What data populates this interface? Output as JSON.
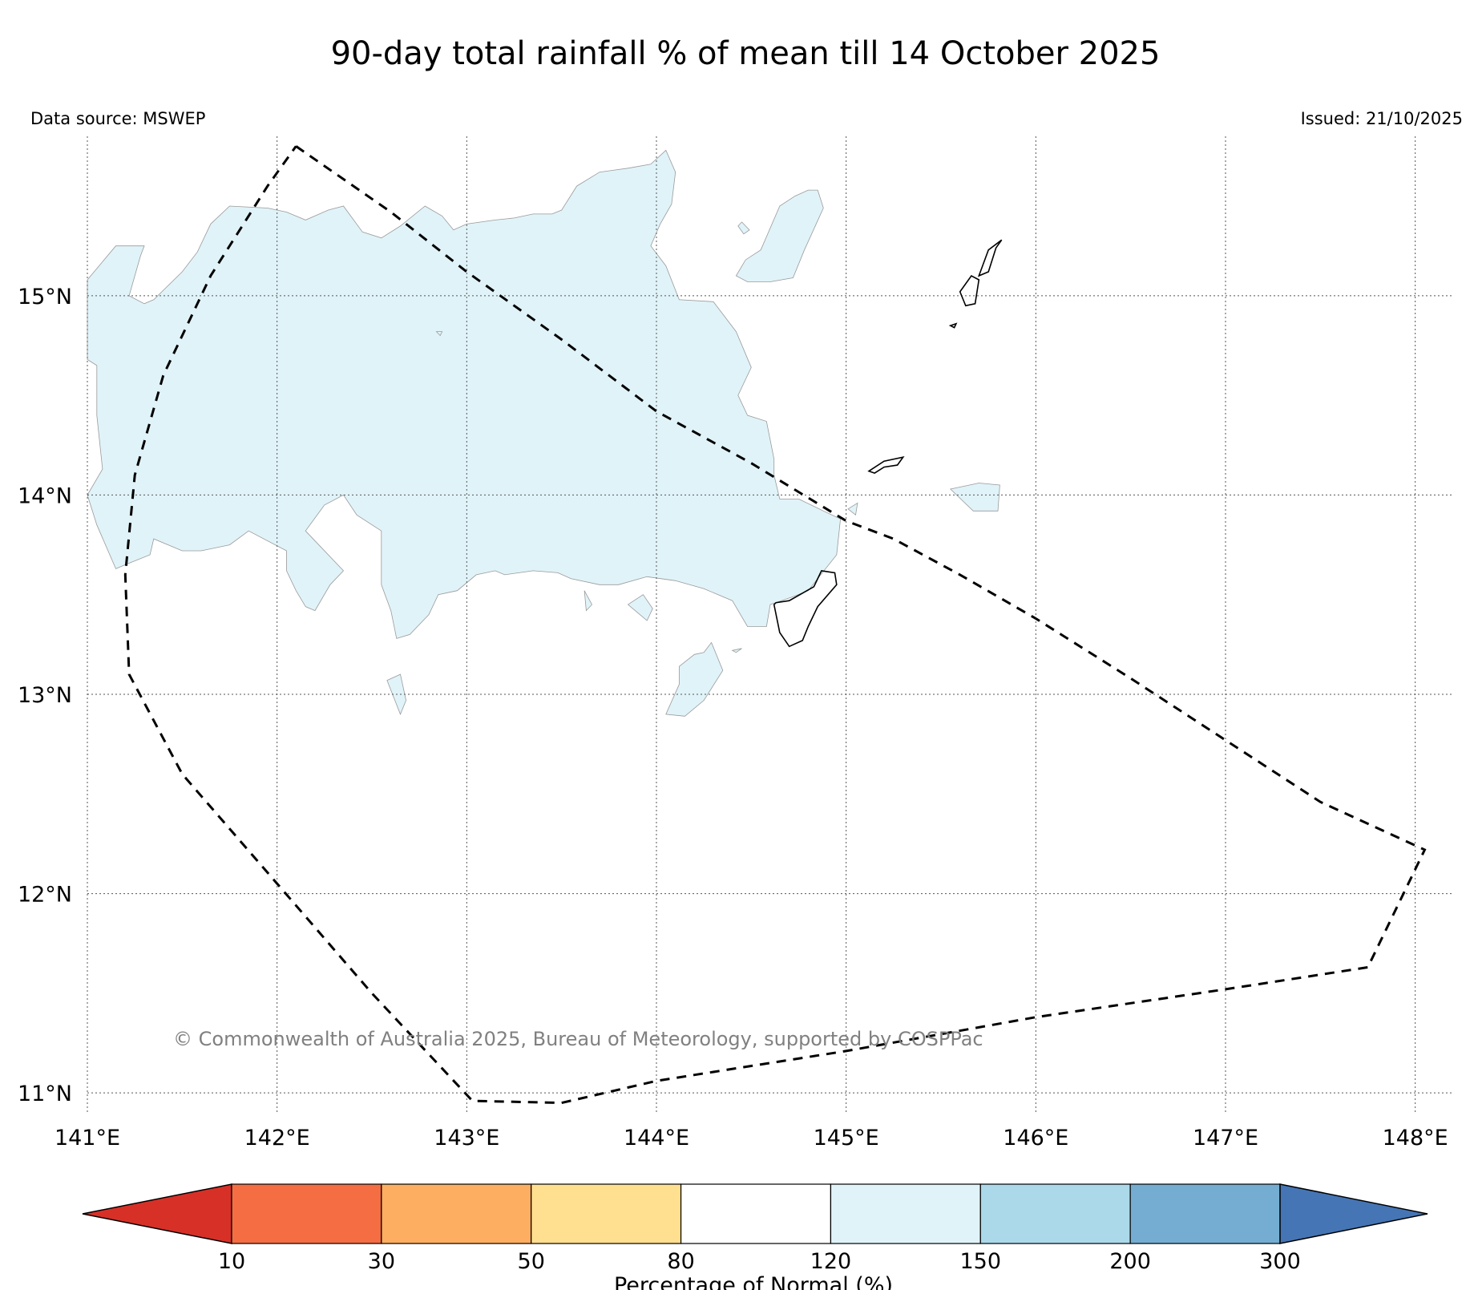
{
  "title": "90-day total rainfall % of mean till 14 October 2025",
  "data_source": "Data source: MSWEP",
  "issued": "Issued: 21/10/2025",
  "copyright": "© Commonwealth of Australia 2025, Bureau of Meteorology, supported by COSPPac",
  "map": {
    "lon_range": [
      141,
      148.2
    ],
    "lat_range": [
      10.9,
      15.8
    ],
    "lat_ticks": [
      {
        "value": 15,
        "label": "15°N"
      },
      {
        "value": 14,
        "label": "14°N"
      },
      {
        "value": 13,
        "label": "13°N"
      },
      {
        "value": 12,
        "label": "12°N"
      },
      {
        "value": 11,
        "label": "11°N"
      }
    ],
    "lon_ticks": [
      {
        "value": 141,
        "label": "141°E"
      },
      {
        "value": 142,
        "label": "142°E"
      },
      {
        "value": 143,
        "label": "143°E"
      },
      {
        "value": 144,
        "label": "144°E"
      },
      {
        "value": 145,
        "label": "145°E"
      },
      {
        "value": 146,
        "label": "146°E"
      },
      {
        "value": 147,
        "label": "147°E"
      },
      {
        "value": 148,
        "label": "148°E"
      }
    ],
    "gridlines": true,
    "shaded_category_color": "#e0f3f8",
    "eez_boundary": [
      [
        142.1,
        15.75
      ],
      [
        142.6,
        15.42
      ],
      [
        143.0,
        15.12
      ],
      [
        143.5,
        14.78
      ],
      [
        144.0,
        14.42
      ],
      [
        144.5,
        14.16
      ],
      [
        145.0,
        13.87
      ],
      [
        145.25,
        13.78
      ],
      [
        145.6,
        13.6
      ],
      [
        146.0,
        13.38
      ],
      [
        146.5,
        13.08
      ],
      [
        147.0,
        12.77
      ],
      [
        147.5,
        12.46
      ],
      [
        148.05,
        12.22
      ],
      [
        147.75,
        11.63
      ],
      [
        147.0,
        11.52
      ],
      [
        146.0,
        11.38
      ],
      [
        145.0,
        11.21
      ],
      [
        144.0,
        11.06
      ],
      [
        143.5,
        10.95
      ],
      [
        143.03,
        10.96
      ],
      [
        142.5,
        11.5
      ],
      [
        142.0,
        12.05
      ],
      [
        141.5,
        12.6
      ],
      [
        141.22,
        13.1
      ],
      [
        141.2,
        13.6
      ],
      [
        141.25,
        14.1
      ],
      [
        141.4,
        14.6
      ],
      [
        141.65,
        15.1
      ],
      [
        141.95,
        15.55
      ],
      [
        142.1,
        15.75
      ]
    ],
    "shaded_regions": [
      [
        [
          141.0,
          15.08
        ],
        [
          141.15,
          15.25
        ],
        [
          141.3,
          15.25
        ],
        [
          141.28,
          15.2
        ],
        [
          141.22,
          15.0
        ],
        [
          141.3,
          14.96
        ],
        [
          141.35,
          14.98
        ],
        [
          141.5,
          15.12
        ],
        [
          141.58,
          15.22
        ],
        [
          141.65,
          15.36
        ],
        [
          141.75,
          15.45
        ],
        [
          141.95,
          15.44
        ],
        [
          142.05,
          15.42
        ],
        [
          142.15,
          15.38
        ],
        [
          142.27,
          15.43
        ],
        [
          142.35,
          15.45
        ],
        [
          142.45,
          15.32
        ],
        [
          142.55,
          15.29
        ],
        [
          142.65,
          15.35
        ],
        [
          142.78,
          15.45
        ],
        [
          142.87,
          15.4
        ],
        [
          142.93,
          15.33
        ],
        [
          143.0,
          15.36
        ],
        [
          143.15,
          15.38
        ],
        [
          143.25,
          15.39
        ],
        [
          143.35,
          15.41
        ],
        [
          143.45,
          15.41
        ],
        [
          143.5,
          15.43
        ],
        [
          143.58,
          15.55
        ],
        [
          143.7,
          15.62
        ],
        [
          143.85,
          15.64
        ],
        [
          143.97,
          15.66
        ],
        [
          144.05,
          15.73
        ],
        [
          144.1,
          15.62
        ],
        [
          144.08,
          15.46
        ],
        [
          144.02,
          15.36
        ],
        [
          143.97,
          15.25
        ],
        [
          144.05,
          15.15
        ],
        [
          144.12,
          14.98
        ],
        [
          144.3,
          14.97
        ],
        [
          144.42,
          14.82
        ],
        [
          144.5,
          14.64
        ],
        [
          144.43,
          14.5
        ],
        [
          144.48,
          14.4
        ],
        [
          144.58,
          14.37
        ],
        [
          144.62,
          14.18
        ],
        [
          144.62,
          14.1
        ],
        [
          144.65,
          13.98
        ],
        [
          144.75,
          13.98
        ],
        [
          144.88,
          13.92
        ],
        [
          144.97,
          13.88
        ],
        [
          144.95,
          13.7
        ],
        [
          144.8,
          13.52
        ],
        [
          144.72,
          13.49
        ],
        [
          144.6,
          13.45
        ],
        [
          144.58,
          13.34
        ],
        [
          144.48,
          13.34
        ],
        [
          144.4,
          13.47
        ],
        [
          144.25,
          13.53
        ],
        [
          144.1,
          13.57
        ],
        [
          143.95,
          13.59
        ],
        [
          143.8,
          13.55
        ],
        [
          143.7,
          13.55
        ],
        [
          143.55,
          13.58
        ],
        [
          143.48,
          13.61
        ],
        [
          143.35,
          13.62
        ],
        [
          143.2,
          13.6
        ],
        [
          143.15,
          13.62
        ],
        [
          143.05,
          13.6
        ],
        [
          142.95,
          13.52
        ],
        [
          142.85,
          13.5
        ],
        [
          142.8,
          13.4
        ],
        [
          142.7,
          13.3
        ],
        [
          142.63,
          13.28
        ],
        [
          142.6,
          13.42
        ],
        [
          142.55,
          13.55
        ],
        [
          142.55,
          13.7
        ],
        [
          142.55,
          13.82
        ],
        [
          142.42,
          13.9
        ],
        [
          142.35,
          14.0
        ],
        [
          142.25,
          13.95
        ],
        [
          142.15,
          13.82
        ],
        [
          142.35,
          13.62
        ],
        [
          142.28,
          13.55
        ],
        [
          142.2,
          13.42
        ],
        [
          142.15,
          13.44
        ],
        [
          142.1,
          13.52
        ],
        [
          142.05,
          13.62
        ],
        [
          142.05,
          13.72
        ],
        [
          141.85,
          13.82
        ],
        [
          141.75,
          13.75
        ],
        [
          141.6,
          13.72
        ],
        [
          141.5,
          13.72
        ],
        [
          141.35,
          13.78
        ],
        [
          141.33,
          13.7
        ],
        [
          141.2,
          13.65
        ],
        [
          141.15,
          13.63
        ],
        [
          141.05,
          13.85
        ],
        [
          141.0,
          14.0
        ],
        [
          141.08,
          14.13
        ],
        [
          141.05,
          14.4
        ],
        [
          141.05,
          14.65
        ],
        [
          141.0,
          14.68
        ]
      ],
      [
        [
          143.62,
          13.52
        ],
        [
          143.63,
          13.42
        ],
        [
          143.66,
          13.45
        ]
      ],
      [
        [
          143.85,
          13.45
        ],
        [
          143.93,
          13.5
        ],
        [
          143.98,
          13.43
        ],
        [
          143.95,
          13.37
        ]
      ],
      [
        [
          142.58,
          13.07
        ],
        [
          142.65,
          13.1
        ],
        [
          142.68,
          12.97
        ],
        [
          142.65,
          12.9
        ]
      ],
      [
        [
          144.05,
          12.9
        ],
        [
          144.12,
          13.05
        ],
        [
          144.12,
          13.14
        ],
        [
          144.2,
          13.2
        ],
        [
          144.25,
          13.21
        ],
        [
          144.29,
          13.26
        ],
        [
          144.35,
          13.12
        ],
        [
          144.25,
          12.97
        ],
        [
          144.15,
          12.89
        ]
      ],
      [
        [
          144.4,
          13.22
        ],
        [
          144.45,
          13.23
        ],
        [
          144.42,
          13.21
        ]
      ],
      [
        [
          144.42,
          15.1
        ],
        [
          144.47,
          15.18
        ],
        [
          144.55,
          15.23
        ],
        [
          144.65,
          15.45
        ],
        [
          144.73,
          15.5
        ],
        [
          144.8,
          15.53
        ],
        [
          144.85,
          15.53
        ],
        [
          144.88,
          15.44
        ],
        [
          144.78,
          15.23
        ],
        [
          144.72,
          15.09
        ],
        [
          144.6,
          15.07
        ],
        [
          144.48,
          15.07
        ]
      ],
      [
        [
          144.43,
          15.35
        ],
        [
          144.46,
          15.31
        ],
        [
          144.49,
          15.33
        ],
        [
          144.45,
          15.37
        ]
      ],
      [
        [
          145.01,
          13.93
        ],
        [
          145.06,
          13.96
        ],
        [
          145.05,
          13.9
        ]
      ],
      [
        [
          145.55,
          14.03
        ],
        [
          145.7,
          14.06
        ],
        [
          145.81,
          14.05
        ],
        [
          145.8,
          13.92
        ],
        [
          145.67,
          13.92
        ]
      ],
      [
        [
          142.84,
          14.82
        ],
        [
          142.87,
          14.82
        ],
        [
          142.86,
          14.8
        ]
      ]
    ],
    "outlined_islands": [
      [
        [
          144.62,
          13.45
        ],
        [
          144.65,
          13.31
        ],
        [
          144.7,
          13.24
        ],
        [
          144.77,
          13.27
        ],
        [
          144.8,
          13.34
        ],
        [
          144.85,
          13.44
        ],
        [
          144.95,
          13.55
        ],
        [
          144.94,
          13.61
        ],
        [
          144.87,
          13.62
        ],
        [
          144.83,
          13.54
        ],
        [
          144.7,
          13.47
        ],
        [
          144.63,
          13.46
        ]
      ],
      [
        [
          145.12,
          14.12
        ],
        [
          145.2,
          14.17
        ],
        [
          145.3,
          14.19
        ],
        [
          145.27,
          14.15
        ],
        [
          145.2,
          14.14
        ],
        [
          145.15,
          14.11
        ]
      ],
      [
        [
          145.55,
          14.85
        ],
        [
          145.58,
          14.86
        ],
        [
          145.57,
          14.84
        ]
      ],
      [
        [
          145.6,
          15.02
        ],
        [
          145.66,
          15.1
        ],
        [
          145.7,
          15.08
        ],
        [
          145.68,
          14.96
        ],
        [
          145.63,
          14.95
        ]
      ],
      [
        [
          145.7,
          15.1
        ],
        [
          145.75,
          15.23
        ],
        [
          145.82,
          15.28
        ],
        [
          145.79,
          15.24
        ],
        [
          145.75,
          15.12
        ]
      ]
    ]
  },
  "colorbar": {
    "label": "Percentage of Normal (%)",
    "bins": [
      {
        "color": "#d73027"
      },
      {
        "color": "#f46d43"
      },
      {
        "color": "#fdae61"
      },
      {
        "color": "#fee090"
      },
      {
        "color": "#ffffff"
      },
      {
        "color": "#e0f3f8"
      },
      {
        "color": "#abd9e9"
      },
      {
        "color": "#74add1"
      },
      {
        "color": "#4575b4"
      }
    ],
    "tick_labels": [
      "10",
      "30",
      "50",
      "80",
      "120",
      "150",
      "200",
      "300"
    ]
  }
}
